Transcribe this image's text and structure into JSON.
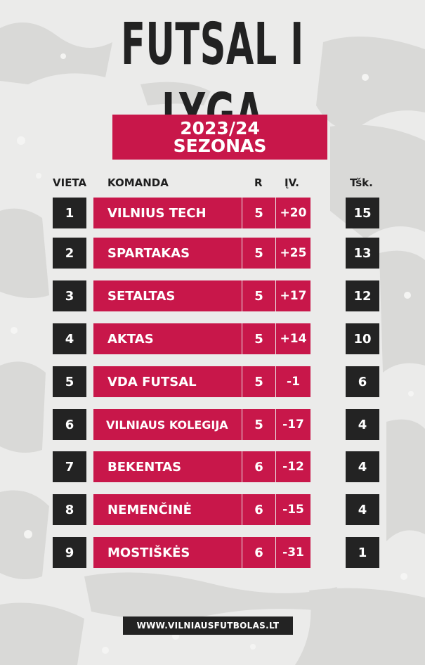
{
  "title": "FUTSAL I LYGA",
  "season": {
    "line1": "2023/24",
    "line2": "SEZONAS"
  },
  "headers": {
    "rank": "VIETA",
    "team": "KOMANDA",
    "games": "R",
    "diff": "ĮV.",
    "points": "Tšk."
  },
  "rows": [
    {
      "rank": "1",
      "team": "VILNIUS TECH",
      "games": "5",
      "diff": "+20",
      "points": "15"
    },
    {
      "rank": "2",
      "team": "SPARTAKAS",
      "games": "5",
      "diff": "+25",
      "points": "13"
    },
    {
      "rank": "3",
      "team": "SETALTAS",
      "games": "5",
      "diff": "+17",
      "points": "12"
    },
    {
      "rank": "4",
      "team": "AKTAS",
      "games": "5",
      "diff": "+14",
      "points": "10"
    },
    {
      "rank": "5",
      "team": "VDA FUTSAL",
      "games": "5",
      "diff": "-1",
      "points": "6"
    },
    {
      "rank": "6",
      "team": "VILNIAUS KOLEGIJA",
      "games": "5",
      "diff": "-17",
      "points": "4"
    },
    {
      "rank": "7",
      "team": "BEKENTAS",
      "games": "6",
      "diff": "-12",
      "points": "4"
    },
    {
      "rank": "8",
      "team": "NEMENČINĖ",
      "games": "6",
      "diff": "-15",
      "points": "4"
    },
    {
      "rank": "9",
      "team": "MOSTIŠKĖS",
      "games": "6",
      "diff": "-31",
      "points": "1"
    }
  ],
  "footer": "WWW.VILNIAUSFUTBOLAS.LT",
  "colors": {
    "accent": "#c8174a",
    "dark": "#232323",
    "background": "#ebebea"
  }
}
